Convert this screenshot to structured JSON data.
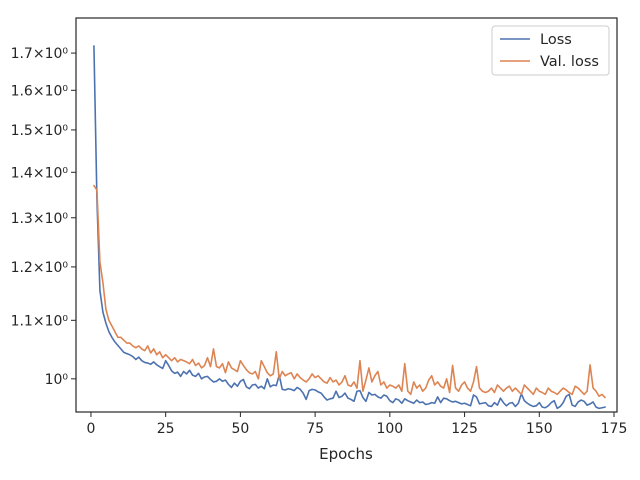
{
  "chart_data": {
    "type": "line",
    "title": "",
    "xlabel": "Epochs",
    "ylabel": "",
    "xlim": [
      -5,
      176
    ],
    "ylim": [
      0.9474,
      1.8
    ],
    "y_scale": "log",
    "grid": false,
    "legend_position": "top-right",
    "x_ticks": [
      0,
      25,
      50,
      75,
      100,
      125,
      150,
      175
    ],
    "x_tick_labels": [
      "0",
      "25",
      "50",
      "75",
      "100",
      "125",
      "150",
      "175"
    ],
    "y_ticks": [
      1.0,
      1.1,
      1.2,
      1.3,
      1.4,
      1.5,
      1.6,
      1.7
    ],
    "y_tick_labels": [
      "10⁰",
      "1.1×10⁰",
      "1.2×10⁰",
      "1.3×10⁰",
      "1.4×10⁰",
      "1.5×10⁰",
      "1.6×10⁰",
      "1.7×10⁰"
    ],
    "x_start": 1,
    "series": [
      {
        "name": "Loss",
        "color": "#4c72b0",
        "values": [
          1.72,
          1.34,
          1.155,
          1.115,
          1.095,
          1.08,
          1.07,
          1.062,
          1.056,
          1.05,
          1.044,
          1.042,
          1.04,
          1.037,
          1.032,
          1.036,
          1.03,
          1.027,
          1.026,
          1.024,
          1.028,
          1.023,
          1.02,
          1.017,
          1.03,
          1.022,
          1.013,
          1.009,
          1.011,
          1.004,
          1.012,
          1.008,
          1.014,
          1.006,
          1.004,
          1.009,
          1.0,
          1.003,
          1.004,
          0.999,
          0.995,
          0.996,
          1.0,
          0.996,
          0.998,
          0.991,
          0.986,
          0.993,
          0.988,
          0.996,
          0.999,
          0.987,
          0.984,
          0.99,
          0.991,
          0.985,
          0.988,
          0.984,
          1.0,
          0.987,
          0.99,
          0.989,
          1.006,
          0.983,
          0.982,
          0.984,
          0.983,
          0.981,
          0.986,
          0.983,
          0.977,
          0.967,
          0.981,
          0.983,
          0.982,
          0.979,
          0.977,
          0.971,
          0.966,
          0.968,
          0.969,
          0.98,
          0.97,
          0.972,
          0.977,
          0.969,
          0.967,
          0.964,
          0.98,
          0.981,
          0.97,
          0.964,
          0.978,
          0.974,
          0.975,
          0.971,
          0.969,
          0.974,
          0.972,
          0.965,
          0.962,
          0.968,
          0.966,
          0.961,
          0.968,
          0.965,
          0.963,
          0.961,
          0.966,
          0.962,
          0.963,
          0.959,
          0.96,
          0.962,
          0.961,
          0.971,
          0.962,
          0.969,
          0.968,
          0.965,
          0.963,
          0.964,
          0.962,
          0.96,
          0.961,
          0.959,
          0.957,
          0.974,
          0.971,
          0.96,
          0.961,
          0.962,
          0.957,
          0.956,
          0.962,
          0.958,
          0.969,
          0.962,
          0.957,
          0.961,
          0.962,
          0.956,
          0.961,
          0.976,
          0.965,
          0.961,
          0.958,
          0.956,
          0.957,
          0.962,
          0.955,
          0.954,
          0.957,
          0.962,
          0.965,
          0.953,
          0.956,
          0.962,
          0.972,
          0.975,
          0.958,
          0.956,
          0.963,
          0.966,
          0.964,
          0.958,
          0.96,
          0.963,
          0.955,
          0.953,
          0.954,
          0.955
        ]
      },
      {
        "name": "Val. loss",
        "color": "#dd8452",
        "values": [
          1.37,
          1.36,
          1.21,
          1.17,
          1.12,
          1.1,
          1.09,
          1.08,
          1.07,
          1.07,
          1.065,
          1.06,
          1.06,
          1.055,
          1.052,
          1.055,
          1.05,
          1.047,
          1.055,
          1.043,
          1.05,
          1.04,
          1.045,
          1.035,
          1.04,
          1.035,
          1.03,
          1.035,
          1.028,
          1.032,
          1.03,
          1.028,
          1.025,
          1.032,
          1.022,
          1.026,
          1.018,
          1.022,
          1.035,
          1.02,
          1.05,
          1.02,
          1.018,
          1.025,
          1.01,
          1.028,
          1.018,
          1.015,
          1.012,
          1.03,
          1.022,
          1.015,
          1.01,
          1.008,
          1.012,
          1.0,
          1.03,
          1.02,
          1.01,
          1.005,
          1.008,
          1.045,
          1.0,
          1.012,
          1.005,
          1.008,
          1.01,
          1.0,
          1.008,
          1.002,
          0.998,
          0.995,
          1.0,
          1.008,
          1.002,
          1.005,
          1.0,
          0.995,
          0.993,
          1.002,
          0.995,
          0.998,
          0.99,
          0.995,
          1.005,
          0.99,
          0.988,
          0.995,
          0.985,
          1.03,
          0.98,
          0.998,
          1.018,
          0.995,
          1.005,
          1.012,
          0.99,
          0.995,
          0.985,
          0.99,
          0.988,
          0.985,
          0.99,
          0.98,
          1.025,
          0.98,
          0.975,
          0.995,
          0.985,
          0.99,
          0.98,
          0.985,
          0.998,
          1.005,
          0.99,
          0.995,
          0.988,
          0.985,
          1.0,
          0.978,
          1.022,
          0.985,
          0.98,
          0.99,
          0.995,
          0.985,
          0.98,
          0.995,
          1.02,
          0.985,
          0.98,
          0.978,
          0.98,
          0.985,
          0.978,
          0.99,
          0.985,
          0.98,
          0.985,
          0.988,
          0.98,
          0.985,
          0.98,
          0.975,
          0.99,
          0.985,
          0.98,
          0.975,
          0.985,
          0.98,
          0.978,
          0.975,
          0.985,
          0.98,
          0.978,
          0.975,
          0.98,
          0.985,
          0.982,
          0.978,
          0.975,
          0.988,
          0.985,
          0.98,
          0.975,
          0.98,
          1.023,
          0.985,
          0.98,
          0.972,
          0.975,
          0.97
        ]
      }
    ]
  }
}
